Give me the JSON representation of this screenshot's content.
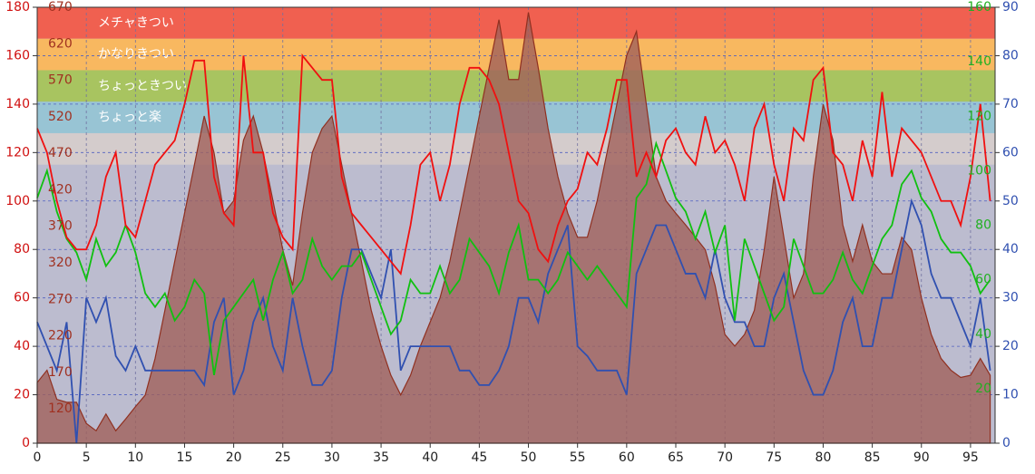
{
  "chart_data": {
    "type": "line",
    "bands": [
      {
        "label": "メチャきつい",
        "from": 167,
        "to": 180,
        "color": "#f06050"
      },
      {
        "label": "かなりきつい",
        "from": 154,
        "to": 167,
        "color": "#f8b860"
      },
      {
        "label": "ちょっときつい",
        "from": 141,
        "to": 154,
        "color": "#a8c460"
      },
      {
        "label": "ちょっと楽",
        "from": 128,
        "to": 141,
        "color": "#98c4d4"
      },
      {
        "from": 115,
        "to": 128,
        "color": "#d4cccc"
      }
    ],
    "x": [
      0,
      1,
      2,
      3,
      4,
      5,
      6,
      7,
      8,
      9,
      10,
      11,
      12,
      13,
      14,
      15,
      16,
      17,
      18,
      19,
      20,
      21,
      22,
      23,
      24,
      25,
      26,
      27,
      28,
      29,
      30,
      31,
      32,
      33,
      34,
      35,
      36,
      37,
      38,
      39,
      40,
      41,
      42,
      43,
      44,
      45,
      46,
      47,
      48,
      49,
      50,
      51,
      52,
      53,
      54,
      55,
      56,
      57,
      58,
      59,
      60,
      61,
      62,
      63,
      64,
      65,
      66,
      67,
      68,
      69,
      70,
      71,
      72,
      73,
      74,
      75,
      76,
      77,
      78,
      79,
      80,
      81,
      82,
      83,
      84,
      85,
      86,
      87,
      88,
      89,
      90,
      91,
      92,
      93,
      94,
      95,
      96,
      97
    ],
    "xlim": [
      0,
      97.5
    ],
    "xticks": [
      0,
      5,
      10,
      15,
      20,
      25,
      30,
      35,
      40,
      45,
      50,
      55,
      60,
      65,
      70,
      75,
      80,
      85,
      90,
      95
    ],
    "ylim": [
      0,
      180
    ],
    "yticks": [
      0,
      20,
      40,
      60,
      80,
      100,
      120,
      140,
      160,
      180
    ],
    "y2lim": [
      0,
      90
    ],
    "y2ticks": [
      0,
      10,
      20,
      30,
      40,
      50,
      60,
      70,
      80,
      90
    ],
    "y3lim": [
      0,
      160
    ],
    "y3ticks": [
      20,
      40,
      60,
      80,
      100,
      120,
      140,
      160
    ],
    "y4lim": [
      73,
      670
    ],
    "y4ticks": [
      120,
      170,
      220,
      270,
      320,
      370,
      420,
      470,
      520,
      570,
      620,
      670
    ],
    "grid": true,
    "series": [
      {
        "color": "#a0605a",
        "axis": "y4",
        "area": true,
        "values": [
          156,
          173,
          133,
          129,
          129,
          100,
          90,
          113,
          90,
          106,
          123,
          139,
          189,
          255,
          322,
          388,
          454,
          521,
          471,
          388,
          405,
          488,
          521,
          471,
          405,
          338,
          289,
          388,
          471,
          504,
          521,
          454,
          388,
          322,
          255,
          206,
          166,
          139,
          166,
          206,
          239,
          272,
          322,
          388,
          454,
          521,
          587,
          653,
          571,
          571,
          663,
          587,
          504,
          438,
          388,
          355,
          355,
          405,
          471,
          537,
          604,
          637,
          537,
          438,
          405,
          388,
          372,
          355,
          338,
          289,
          222,
          206,
          222,
          255,
          338,
          438,
          355,
          272,
          305,
          438,
          537,
          488,
          372,
          322,
          372,
          322,
          305,
          305,
          355,
          338,
          272,
          222,
          189,
          173,
          163,
          166,
          189,
          166
        ]
      },
      {
        "color": "#3050b0",
        "axis": "y2",
        "values": [
          25,
          20,
          15,
          25,
          0,
          30,
          25,
          30,
          18,
          15,
          20,
          15,
          15,
          15,
          15,
          15,
          15,
          12,
          25,
          30,
          10,
          15,
          25,
          30,
          20,
          15,
          30,
          20,
          12,
          12,
          15,
          30,
          40,
          40,
          35,
          30,
          40,
          15,
          20,
          20,
          20,
          20,
          20,
          15,
          15,
          12,
          12,
          15,
          20,
          30,
          30,
          25,
          35,
          40,
          45,
          20,
          18,
          15,
          15,
          15,
          10,
          35,
          40,
          45,
          45,
          40,
          35,
          35,
          30,
          40,
          30,
          25,
          25,
          20,
          20,
          30,
          35,
          25,
          15,
          10,
          10,
          15,
          25,
          30,
          20,
          20,
          30,
          30,
          40,
          50,
          45,
          35,
          30,
          30,
          25,
          20,
          30,
          15
        ]
      },
      {
        "color": "#10c010",
        "axis": "y3",
        "values": [
          90,
          100,
          85,
          75,
          70,
          60,
          75,
          65,
          70,
          80,
          70,
          55,
          50,
          55,
          45,
          50,
          60,
          55,
          25,
          45,
          50,
          55,
          60,
          45,
          60,
          70,
          55,
          60,
          75,
          65,
          60,
          65,
          65,
          70,
          60,
          50,
          40,
          45,
          60,
          55,
          55,
          65,
          55,
          60,
          75,
          70,
          65,
          55,
          70,
          80,
          60,
          60,
          55,
          60,
          70,
          65,
          60,
          65,
          60,
          55,
          50,
          90,
          95,
          110,
          100,
          90,
          85,
          75,
          85,
          70,
          80,
          45,
          75,
          65,
          55,
          45,
          50,
          75,
          65,
          55,
          55,
          60,
          70,
          60,
          55,
          65,
          75,
          80,
          95,
          100,
          90,
          85,
          75,
          70,
          70,
          65,
          55,
          60
        ]
      },
      {
        "color": "#f01010",
        "axis": "y",
        "values": [
          130,
          120,
          100,
          85,
          80,
          80,
          90,
          110,
          120,
          90,
          85,
          100,
          115,
          120,
          125,
          140,
          158,
          158,
          110,
          95,
          90,
          160,
          120,
          120,
          95,
          85,
          80,
          160,
          155,
          150,
          150,
          110,
          95,
          90,
          85,
          80,
          75,
          70,
          90,
          115,
          120,
          100,
          115,
          140,
          155,
          155,
          150,
          140,
          120,
          100,
          95,
          80,
          75,
          90,
          100,
          105,
          120,
          115,
          130,
          150,
          150,
          110,
          120,
          110,
          125,
          130,
          120,
          115,
          135,
          120,
          125,
          115,
          100,
          130,
          140,
          115,
          100,
          130,
          125,
          150,
          155,
          120,
          115,
          100,
          125,
          110,
          145,
          110,
          130,
          125,
          120,
          110,
          100,
          100,
          90,
          110,
          140,
          100
        ]
      }
    ]
  }
}
